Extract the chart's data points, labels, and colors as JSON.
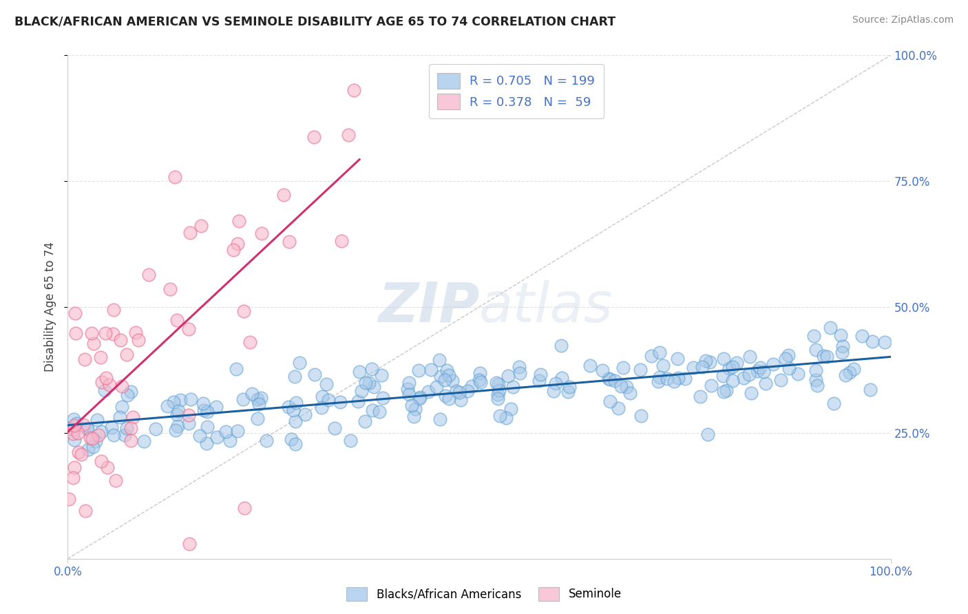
{
  "title": "BLACK/AFRICAN AMERICAN VS SEMINOLE DISABILITY AGE 65 TO 74 CORRELATION CHART",
  "source": "Source: ZipAtlas.com",
  "ylabel": "Disability Age 65 to 74",
  "xlim": [
    0,
    1.0
  ],
  "ylim": [
    0,
    1.0
  ],
  "watermark_zip": "ZIP",
  "watermark_atlas": "atlas",
  "blue_R": 0.705,
  "blue_N": 199,
  "pink_R": 0.378,
  "pink_N": 59,
  "blue_scatter_face": "#a8c8e8",
  "blue_scatter_edge": "#5a9fd4",
  "pink_scatter_face": "#f8b8cc",
  "pink_scatter_edge": "#e87090",
  "blue_line_color": "#1a5fa0",
  "pink_line_color": "#d03070",
  "diagonal_color": "#c8c8c8",
  "background_color": "#ffffff",
  "grid_color": "#e0e0e0",
  "right_tick_color": "#4472c4",
  "title_color": "#222222",
  "source_color": "#888888"
}
